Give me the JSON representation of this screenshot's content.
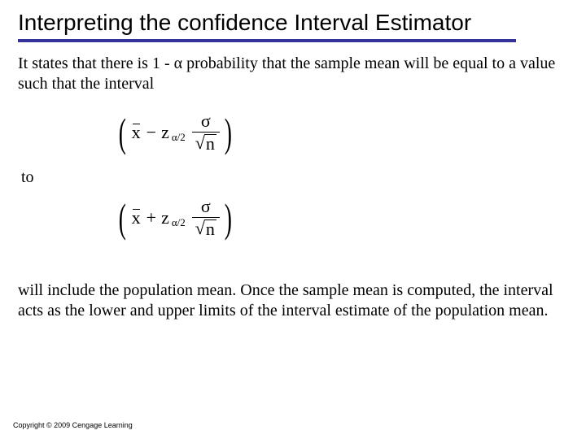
{
  "title": "Interpreting the confidence Interval Estimator",
  "para1": "It states that there is 1 - α probability that the sample mean will be equal to a value such that the interval",
  "to": "to",
  "para3": "will include the population mean. Once the sample mean is computed, the interval acts as the lower and upper limits of the interval estimate of the population mean.",
  "copyright": "Copyright © 2009 Cengage Learning",
  "formula": {
    "xbar": "x",
    "minus": "−",
    "plus": "+",
    "z": "z",
    "z_sub": "α/2",
    "sigma": "σ",
    "sqrt_sym": "√",
    "n": "n"
  },
  "colors": {
    "rule": "#333399",
    "text": "#000000",
    "background": "#ffffff"
  },
  "fontsize": {
    "title": 28,
    "body": 20,
    "formula": 22,
    "copyright": 9
  }
}
